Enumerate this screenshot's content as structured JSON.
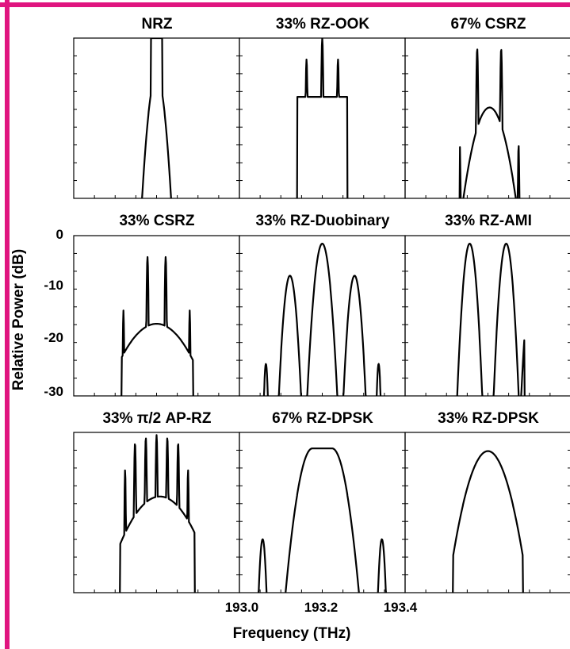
{
  "accent_color": "#e0157f",
  "chart_data": {
    "type": "line",
    "layout": "3x3 grid of optical spectra (log-power, no per-panel data labels)",
    "ylabel": "Relative Power (dB)",
    "xlabel": "Frequency (THz)",
    "ylim": [
      -30,
      0
    ],
    "xlim": [
      192.9,
      193.5
    ],
    "yticks": [
      "0",
      "-10",
      "-20",
      "-30"
    ],
    "xticks": [
      "193.0",
      "193.2",
      "193.4"
    ],
    "grid": false,
    "panels": [
      {
        "title": "NRZ",
        "shape": "nrz"
      },
      {
        "title": "33% RZ-OOK",
        "shape": "rzook"
      },
      {
        "title": "67% CSRZ",
        "shape": "csrz67"
      },
      {
        "title": "33% CSRZ",
        "shape": "csrz33"
      },
      {
        "title": "33% RZ-Duobinary",
        "shape": "duob"
      },
      {
        "title": "33% RZ-AMI",
        "shape": "ami"
      },
      {
        "title": "33% π/2 AP-RZ",
        "shape": "aprz"
      },
      {
        "title": "67% RZ-DPSK",
        "shape": "dpsk67"
      },
      {
        "title": "33% RZ-DPSK",
        "shape": "dpsk33"
      }
    ]
  }
}
